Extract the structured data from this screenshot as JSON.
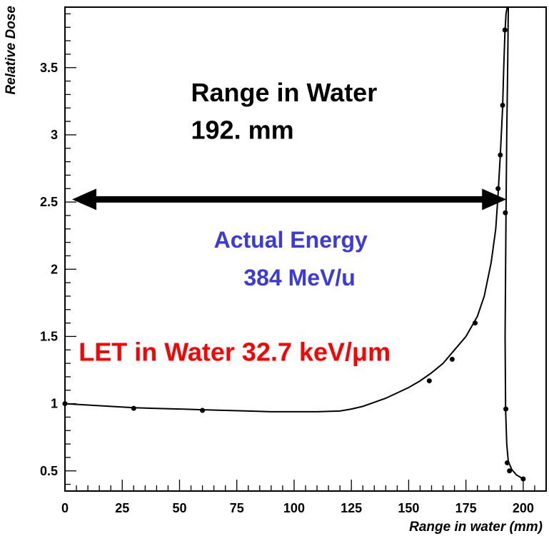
{
  "chart_data": {
    "type": "line",
    "title": "",
    "xlabel": "Range in water (mm)",
    "ylabel": "Relative Dose",
    "xlim": [
      0,
      210
    ],
    "ylim": [
      0.35,
      3.95
    ],
    "grid": false,
    "x_ticks": [
      "0",
      "25",
      "50",
      "75",
      "100",
      "125",
      "150",
      "175",
      "200"
    ],
    "y_ticks": [
      "0.5",
      "1",
      "1.5",
      "2",
      "2.5",
      "3",
      "3.5"
    ],
    "curve": {
      "x": [
        0,
        10,
        20,
        30,
        40,
        50,
        60,
        70,
        80,
        90,
        100,
        110,
        120,
        125,
        130,
        135,
        140,
        145,
        150,
        155,
        160,
        165,
        170,
        175,
        180,
        183,
        186,
        188,
        189,
        190,
        191,
        191.5,
        192,
        192.5,
        193,
        193.5,
        193.2,
        192.8,
        192.5,
        192.3,
        192.1,
        192.3,
        192.8,
        193.5,
        195,
        197,
        200
      ],
      "y": [
        1.0,
        0.99,
        0.98,
        0.97,
        0.965,
        0.96,
        0.955,
        0.95,
        0.945,
        0.94,
        0.94,
        0.94,
        0.945,
        0.96,
        0.98,
        1.01,
        1.04,
        1.08,
        1.12,
        1.17,
        1.23,
        1.3,
        1.4,
        1.5,
        1.65,
        1.8,
        2.05,
        2.3,
        2.55,
        2.85,
        3.2,
        3.5,
        3.75,
        3.9,
        3.95,
        3.95,
        3.5,
        3.0,
        2.42,
        2.0,
        1.5,
        0.96,
        0.7,
        0.57,
        0.51,
        0.47,
        0.44
      ]
    },
    "points": {
      "x": [
        0,
        30,
        60,
        159,
        169,
        179,
        189,
        190,
        191,
        192,
        192.2,
        192.4,
        193,
        194,
        200
      ],
      "y": [
        1.0,
        0.965,
        0.95,
        1.17,
        1.33,
        1.6,
        2.6,
        2.85,
        3.22,
        3.78,
        2.42,
        0.96,
        0.56,
        0.5,
        0.44
      ]
    },
    "annotations": [
      {
        "text": "Range in Water",
        "color": "#000000",
        "x": 55,
        "y": 3.25
      },
      {
        "text": "192. mm",
        "color": "#000000",
        "x": 55,
        "y": 2.97
      },
      {
        "text": "Actual Energy",
        "color": "#3a3ae0",
        "x": 65,
        "y": 2.16
      },
      {
        "text": "384 MeV/u",
        "color": "#3a3ae0",
        "x": 78,
        "y": 1.88
      },
      {
        "text": "LET in Water 32.7 keV/μm",
        "color": "#ff0000",
        "x": 6,
        "y": 1.32
      }
    ],
    "range_arrow": {
      "x_start": 0,
      "x_end": 192,
      "y": 2.52,
      "color": "#000000"
    }
  }
}
